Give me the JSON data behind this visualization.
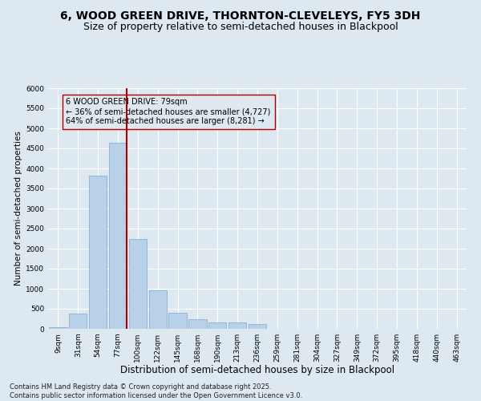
{
  "title": "6, WOOD GREEN DRIVE, THORNTON-CLEVELEYS, FY5 3DH",
  "subtitle": "Size of property relative to semi-detached houses in Blackpool",
  "xlabel": "Distribution of semi-detached houses by size in Blackpool",
  "ylabel": "Number of semi-detached properties",
  "categories": [
    "9sqm",
    "31sqm",
    "54sqm",
    "77sqm",
    "100sqm",
    "122sqm",
    "145sqm",
    "168sqm",
    "190sqm",
    "213sqm",
    "236sqm",
    "259sqm",
    "281sqm",
    "304sqm",
    "327sqm",
    "349sqm",
    "372sqm",
    "395sqm",
    "418sqm",
    "440sqm",
    "463sqm"
  ],
  "values": [
    50,
    390,
    3820,
    4650,
    2250,
    970,
    410,
    250,
    170,
    170,
    130,
    0,
    0,
    0,
    0,
    0,
    0,
    0,
    0,
    0,
    0
  ],
  "bar_color": "#b8d0e8",
  "bar_edge_color": "#7aaad0",
  "vline_color": "#aa0000",
  "vline_x_index": 3,
  "annotation_box_text": "6 WOOD GREEN DRIVE: 79sqm\n← 36% of semi-detached houses are smaller (4,727)\n64% of semi-detached houses are larger (8,281) →",
  "annotation_fontsize": 7,
  "ylim": [
    0,
    6000
  ],
  "yticks": [
    0,
    500,
    1000,
    1500,
    2000,
    2500,
    3000,
    3500,
    4000,
    4500,
    5000,
    5500,
    6000
  ],
  "background_color": "#dde8f0",
  "grid_color": "#ffffff",
  "title_fontsize": 10,
  "subtitle_fontsize": 9,
  "xlabel_fontsize": 8.5,
  "ylabel_fontsize": 7.5,
  "tick_fontsize": 6.5,
  "footnote": "Contains HM Land Registry data © Crown copyright and database right 2025.\nContains public sector information licensed under the Open Government Licence v3.0.",
  "footnote_fontsize": 6
}
